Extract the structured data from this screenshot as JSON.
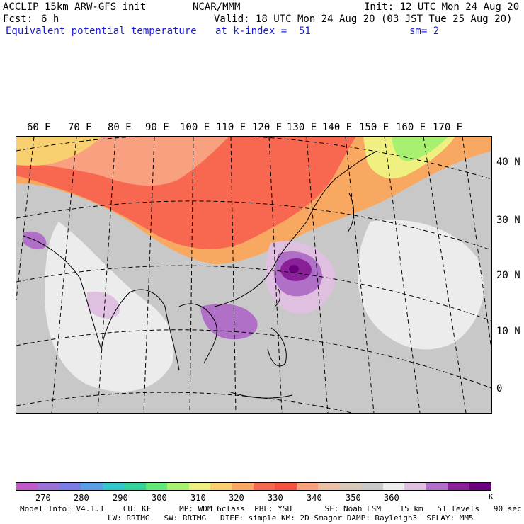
{
  "header": {
    "model": "ACCLIP 15km ARW-GFS init",
    "org": "NCAR/MMM",
    "init": "Init: 12 UTC Mon 24 Aug 20",
    "fcst_label": "Fcst:",
    "fcst_value": "6 h",
    "valid": "Valid: 18 UTC Mon 24 Aug 20 (03 JST Tue 25 Aug 20)",
    "field": "Equivalent potential temperature",
    "level": "at k-index =  51",
    "smooth": "sm= 2"
  },
  "map": {
    "longitude_labels": [
      "60 E",
      "70 E",
      "80 E",
      "90 E",
      "100 E",
      "110 E",
      "120 E",
      "130 E",
      "140 E",
      "150 E",
      "160 E",
      "170 E"
    ],
    "latitude_labels": [
      "40 N",
      "30 N",
      "20 N",
      "10 N",
      "0"
    ]
  },
  "colorbar": {
    "unit": "K",
    "tick_labels": [
      "270",
      "280",
      "290",
      "300",
      "310",
      "320",
      "330",
      "340",
      "350",
      "360"
    ],
    "colors": [
      "#c05ac8",
      "#9a72d8",
      "#7c7ce6",
      "#5c9ee6",
      "#30c8c8",
      "#30d49a",
      "#60e878",
      "#a8f070",
      "#f0f080",
      "#f8d070",
      "#f8a860",
      "#f86850",
      "#f85040",
      "#f8a080",
      "#e8c0a8",
      "#d8c8b8",
      "#c8c8c8",
      "#ececec",
      "#e0c0e0",
      "#b070c8",
      "#8a2098",
      "#6a0080"
    ]
  },
  "footer": {
    "line1": "Model Info: V4.1.1    CU: KF      MP: WDM 6class  PBL: YSU       SF: Noah LSM    15 km   51 levels   90 sec",
    "line2": "LW: RRTMG   SW: RRTMG   DIFF: simple KM: 2D Smagor DAMP: Rayleigh3  SFLAY: MM5"
  }
}
